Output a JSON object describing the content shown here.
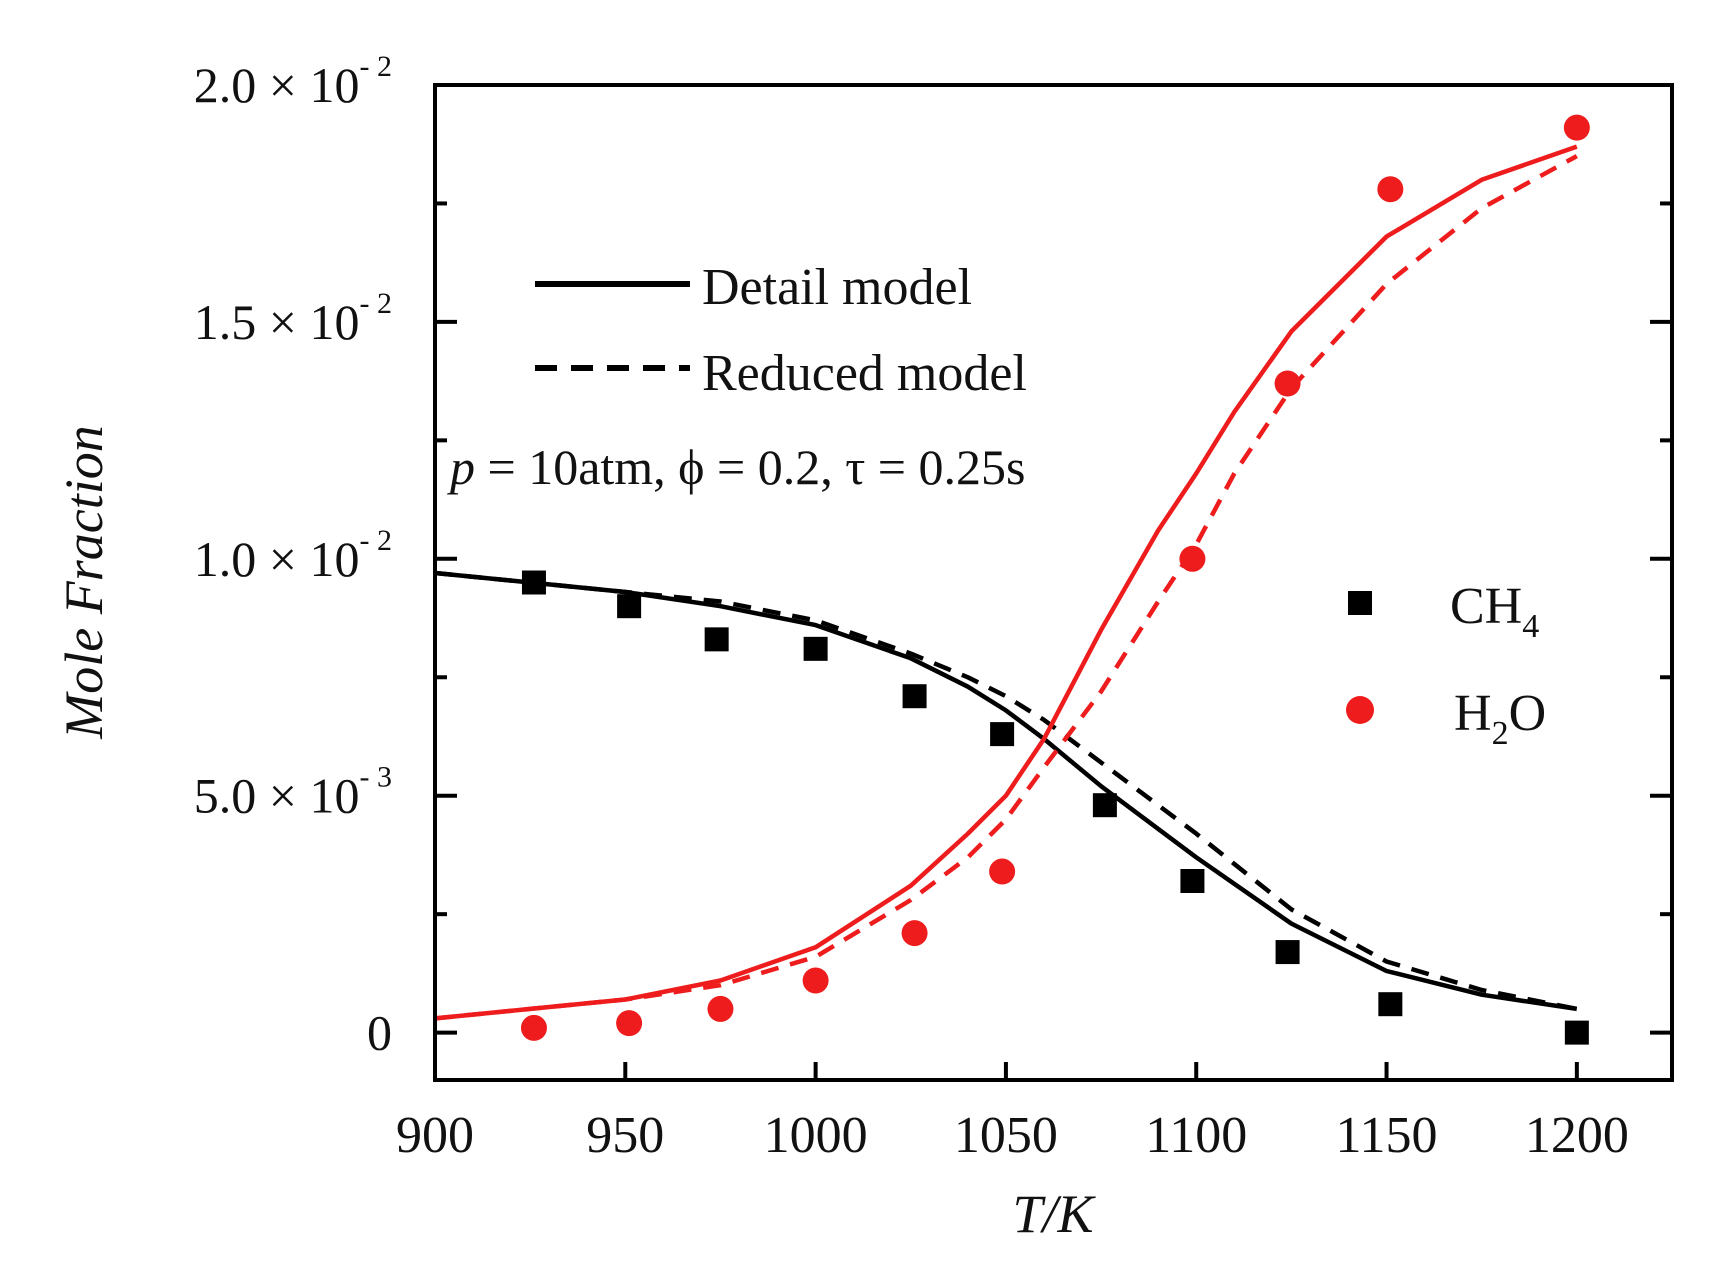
{
  "chart_data": {
    "type": "line",
    "title": "",
    "xlabel": "T/K",
    "ylabel": "Mole Fraction",
    "xlim": [
      900,
      1225
    ],
    "ylim": [
      -0.001,
      0.02
    ],
    "x_ticks": [
      900,
      950,
      1000,
      1050,
      1100,
      1150,
      1200
    ],
    "x_tick_labels": [
      "900",
      "950",
      "1000",
      "1050",
      "1100",
      "1150",
      "1200"
    ],
    "y_ticks": [
      {
        "value": 0,
        "mantissa": "0",
        "exponent": ""
      },
      {
        "value": 0.005,
        "mantissa": "5.0 × 10",
        "exponent": "- 3"
      },
      {
        "value": 0.01,
        "mantissa": "1.0 × 10",
        "exponent": "- 2"
      },
      {
        "value": 0.015,
        "mantissa": "1.5 × 10",
        "exponent": "- 2"
      },
      {
        "value": 0.02,
        "mantissa": "2.0 × 10",
        "exponent": "- 2"
      }
    ],
    "y_minor_ticks": [
      0.0025,
      0.0075,
      0.0125,
      0.0175
    ],
    "annotation": {
      "p_symbol": "p",
      "text": " = 10atm, ϕ = 0.2, τ = 0.25s"
    },
    "line_legend": [
      {
        "label": "Detail model",
        "style": "solid"
      },
      {
        "label": "Reduced model",
        "style": "dashed"
      }
    ],
    "marker_legend": [
      {
        "label_main": "CH",
        "label_sub": "4",
        "marker": "square",
        "color": "#000000"
      },
      {
        "label_main": "H",
        "label_sub": "2",
        "label_end": "O",
        "marker": "circle",
        "color": "#ee1c1c"
      }
    ],
    "series": [
      {
        "name": "CH4 detail model",
        "color": "#000000",
        "style": "solid",
        "x": [
          900,
          925,
          950,
          975,
          1000,
          1025,
          1040,
          1050,
          1060,
          1075,
          1090,
          1100,
          1125,
          1150,
          1175,
          1200
        ],
        "y": [
          0.0097,
          0.0095,
          0.0093,
          0.009,
          0.0086,
          0.0079,
          0.0073,
          0.0068,
          0.0062,
          0.0052,
          0.0043,
          0.0037,
          0.0023,
          0.0013,
          0.0008,
          0.0005
        ]
      },
      {
        "name": "CH4 reduced model",
        "color": "#000000",
        "style": "dashed",
        "x": [
          900,
          925,
          950,
          975,
          1000,
          1025,
          1040,
          1050,
          1060,
          1075,
          1090,
          1100,
          1125,
          1150,
          1175,
          1200
        ],
        "y": [
          0.0097,
          0.0095,
          0.0093,
          0.0091,
          0.0087,
          0.008,
          0.0075,
          0.0071,
          0.0066,
          0.0057,
          0.0048,
          0.0042,
          0.0026,
          0.0015,
          0.0009,
          0.0005
        ]
      },
      {
        "name": "H2O detail model",
        "color": "#ee1c1c",
        "style": "solid",
        "x": [
          900,
          925,
          950,
          975,
          1000,
          1025,
          1040,
          1050,
          1060,
          1075,
          1090,
          1100,
          1110,
          1125,
          1150,
          1175,
          1200
        ],
        "y": [
          0.0003,
          0.0005,
          0.0007,
          0.0011,
          0.0018,
          0.0031,
          0.0042,
          0.005,
          0.0062,
          0.0085,
          0.0106,
          0.0118,
          0.0131,
          0.0148,
          0.0168,
          0.018,
          0.0187
        ]
      },
      {
        "name": "H2O reduced model",
        "color": "#ee1c1c",
        "style": "dashed",
        "x": [
          900,
          925,
          950,
          975,
          1000,
          1025,
          1040,
          1050,
          1060,
          1075,
          1090,
          1100,
          1110,
          1125,
          1150,
          1175,
          1200
        ],
        "y": [
          0.0003,
          0.0005,
          0.0007,
          0.001,
          0.0016,
          0.0028,
          0.0037,
          0.0045,
          0.0056,
          0.0072,
          0.0091,
          0.0103,
          0.0118,
          0.0136,
          0.0158,
          0.0174,
          0.0185
        ]
      },
      {
        "name": "CH4",
        "color": "#000000",
        "style": "marker",
        "marker": "square",
        "x": [
          926,
          951,
          974,
          1000,
          1026,
          1049,
          1076,
          1099,
          1124,
          1151,
          1200
        ],
        "y": [
          0.0095,
          0.009,
          0.0083,
          0.0081,
          0.0071,
          0.0063,
          0.0048,
          0.0032,
          0.0017,
          0.0006,
          0.0
        ]
      },
      {
        "name": "H2O",
        "color": "#ee1c1c",
        "style": "marker",
        "marker": "circle",
        "x": [
          926,
          951,
          975,
          1000,
          1026,
          1049,
          1099,
          1124,
          1151,
          1200
        ],
        "y": [
          0.0001,
          0.0002,
          0.0005,
          0.0011,
          0.0021,
          0.0034,
          0.01,
          0.0137,
          0.0178,
          0.0191
        ]
      }
    ]
  }
}
